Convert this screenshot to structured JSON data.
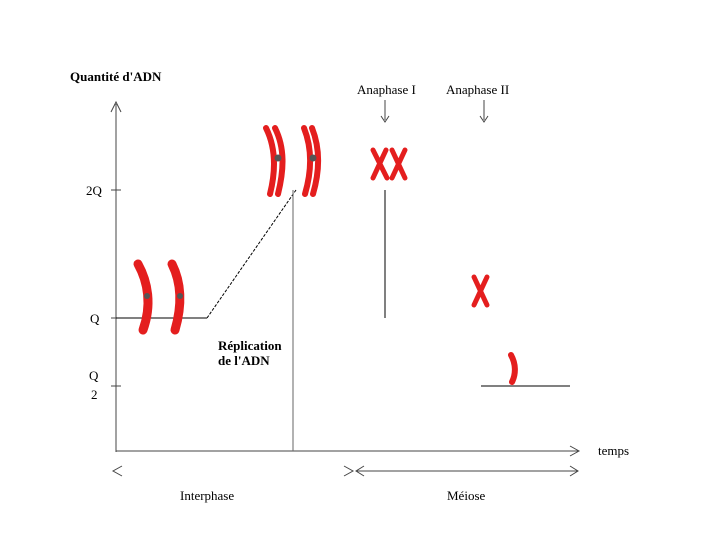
{
  "y_axis_title": "Quantité d'ADN",
  "x_axis_title": "temps",
  "y_ticks": {
    "two_q": "2Q",
    "q": "Q",
    "half_q_numerator": "Q",
    "half_q_denominator": "2"
  },
  "annotations": {
    "anaphase_1": "Anaphase I",
    "anaphase_2": "Anaphase II",
    "replication_line1": "Réplication",
    "replication_line2": "de l'ADN"
  },
  "phases": {
    "interphase": "Interphase",
    "meiose": "Méiose"
  },
  "colors": {
    "chromosome": "#e41e1e",
    "centromere": "#555555",
    "axis": "#444444",
    "curve": "#000000"
  }
}
